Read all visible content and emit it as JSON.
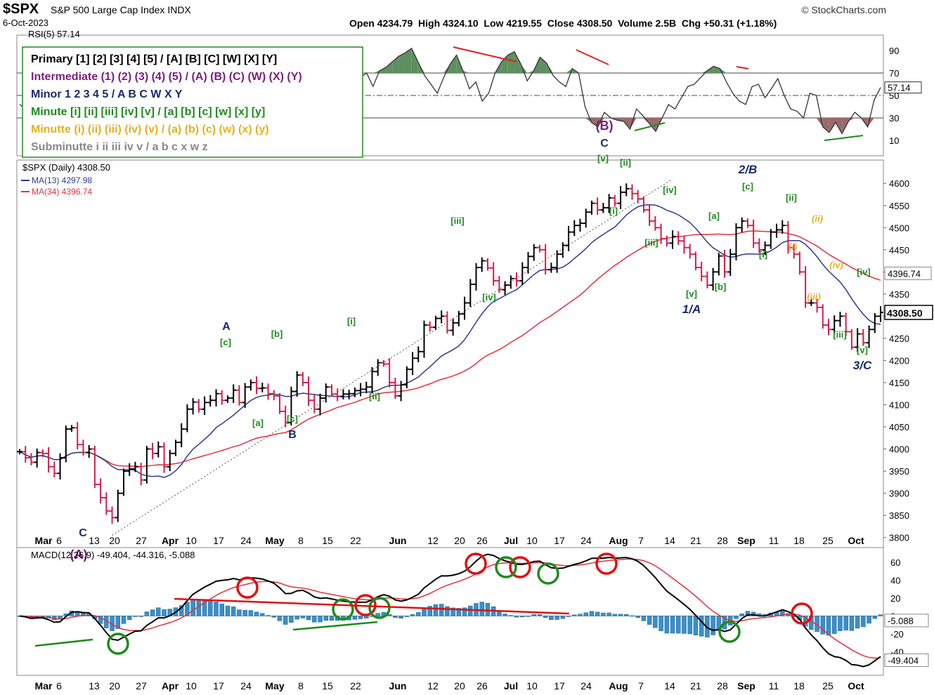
{
  "header": {
    "symbol": "$SPX",
    "name": "S&P 500 Large Cap Index",
    "exchange": "INDX",
    "date": "6-Oct-2023",
    "brand": "© StockCharts.com",
    "ohlc_text": "Open 4234.79  High 4324.10  Low 4219.55  Close 4308.50  Volume 2.5B  Chg +50.31 (+1.18%)"
  },
  "legend_box": [
    {
      "text": "Primary [1] [2] [3] [4] [5] / [A] [B] [C] [W] [X] [Y]",
      "color": "#000000"
    },
    {
      "text": "Intermediate (1) (2) (3) (4) (5) / (A) (B) (C) (W) (X) (Y)",
      "color": "#7a1f7a"
    },
    {
      "text": "Minor 1 2 3 4 5 / A B C W X Y",
      "color": "#1a2a6c"
    },
    {
      "text": "Minute [i] [ii] [iii] [iv] [v] / [a] [b] [c] [w] [x] [y]",
      "color": "#1f8a1f"
    },
    {
      "text": "Minutte (i) (ii) (iii) (iv) (v) / (a) (b) (c) (w) (x) (y)",
      "color": "#e8b020"
    },
    {
      "text": "Subminutte i ii iii iv v / a b c x w z",
      "color": "#888888"
    }
  ],
  "colors": {
    "up": "#000000",
    "down": "#d0204a",
    "ma13": "#2e3a8c",
    "ma34": "#e03040",
    "hist": "#3a8fc8",
    "minute": "#1f8a1f",
    "minutte": "#e8b020",
    "minor": "#1a2a6c",
    "intermediate": "#7a1f7a"
  },
  "chart_data": [
    {
      "type": "line",
      "title": "RSI(5) 57.14",
      "ylim": [
        0,
        100
      ],
      "y_ticks": [
        90,
        70,
        50,
        30,
        10
      ],
      "reference_lines": [
        70,
        50,
        30
      ],
      "last_value": "57.14",
      "series": [
        {
          "name": "RSI(5)",
          "values": [
            42,
            38,
            55,
            60,
            48,
            52,
            40,
            58,
            35,
            50,
            45,
            62,
            70,
            55,
            60,
            48,
            52,
            65,
            68,
            58,
            72,
            66,
            55,
            52,
            62,
            48,
            60,
            66,
            58,
            50,
            62,
            72,
            70,
            60,
            64,
            58,
            50,
            62,
            72,
            58,
            55,
            65,
            72,
            68,
            52,
            60,
            46,
            54,
            63,
            50,
            62,
            55,
            60,
            66,
            70,
            58,
            72,
            75,
            80,
            85,
            88,
            92,
            80,
            68,
            60,
            52,
            66,
            78,
            86,
            72,
            56,
            62,
            45,
            52,
            70,
            80,
            86,
            89,
            78,
            63,
            72,
            84,
            79,
            68,
            62,
            58,
            74,
            70,
            40,
            26,
            22,
            35,
            30,
            28,
            27,
            20,
            38,
            32,
            25,
            18,
            30,
            42,
            38,
            48,
            58,
            60,
            66,
            72,
            76,
            74,
            62,
            52,
            45,
            42,
            58,
            60,
            48,
            56,
            65,
            50,
            38,
            36,
            30,
            52,
            50,
            22,
            17,
            26,
            16,
            27,
            35,
            30,
            22,
            46,
            57.14
          ]
        }
      ]
    },
    {
      "type": "candlestick",
      "title": "$SPX (Daily) 4308.50",
      "y_ticks": [
        4600,
        4550,
        4500,
        4450,
        4400,
        4350,
        4300,
        4250,
        4200,
        4150,
        4100,
        4050,
        4000,
        3950,
        3900,
        3850,
        3800
      ],
      "ylim": [
        3790,
        4640
      ],
      "x_tick_labels": [
        "Mar",
        "6",
        "13",
        "20",
        "27",
        "Apr",
        "10",
        "17",
        "24",
        "May",
        "8",
        "15",
        "22",
        "Jun",
        "12",
        "20",
        "26",
        "Jul",
        "10",
        "17",
        "24",
        "Aug",
        "7",
        "14",
        "21",
        "28",
        "Sep",
        "11",
        "18",
        "25",
        "Oct"
      ],
      "ma13_label": "MA(13) 4297.98",
      "ma34_label": "MA(34) 4396.74",
      "last_close_label": "4308.50",
      "ma34_last_label": "4396.74",
      "closes": [
        3994,
        3980,
        3970,
        3992,
        3990,
        3960,
        3945,
        3980,
        4045,
        4048,
        4010,
        3992,
        4000,
        3920,
        3890,
        3860,
        3845,
        3900,
        3950,
        3955,
        3960,
        3930,
        4000,
        3990,
        4005,
        3960,
        3990,
        4015,
        4045,
        4090,
        4106,
        4090,
        4105,
        4110,
        4125,
        4110,
        4115,
        4133,
        4105,
        4140,
        4150,
        4137,
        4138,
        4125,
        4120,
        4085,
        4060,
        4130,
        4167,
        4150,
        4110,
        4090,
        4115,
        4140,
        4124,
        4119,
        4124,
        4125,
        4132,
        4135,
        4140,
        4175,
        4195,
        4192,
        4150,
        4120,
        4145,
        4180,
        4205,
        4220,
        4280,
        4275,
        4295,
        4300,
        4268,
        4285,
        4305,
        4330,
        4372,
        4410,
        4425,
        4409,
        4380,
        4360,
        4370,
        4385,
        4380,
        4410,
        4435,
        4455,
        4450,
        4405,
        4410,
        4440,
        4460,
        4490,
        4505,
        4510,
        4535,
        4555,
        4540,
        4545,
        4567,
        4555,
        4580,
        4588,
        4577,
        4565,
        4540,
        4515,
        4500,
        4475,
        4465,
        4480,
        4470,
        4455,
        4440,
        4410,
        4390,
        4370,
        4400,
        4436,
        4400,
        4440,
        4500,
        4515,
        4505,
        4465,
        4450,
        4460,
        4490,
        4495,
        4505,
        4455,
        4440,
        4400,
        4330,
        4330,
        4320,
        4280,
        4270,
        4290,
        4300,
        4265,
        4230,
        4260,
        4240,
        4270,
        4300,
        4308.5
      ]
    },
    {
      "type": "line",
      "title": "MACD(12,26,9) -49.404, -44.316, -5.088",
      "ylim": [
        -60,
        70
      ],
      "y_ticks": [
        60,
        40,
        20,
        0,
        -20,
        -40
      ],
      "labels": {
        "macd": "-49.404",
        "signal": "-44.316",
        "hist": "-5.088"
      }
    }
  ],
  "annotations": {
    "main_labels": [
      {
        "text": "C",
        "color": "#1a2a6c"
      },
      {
        "text": "(A)",
        "color": "#7a1f7a"
      },
      {
        "text": "A",
        "color": "#1a2a6c"
      },
      {
        "text": "[c]",
        "color": "#1f8a1f"
      },
      {
        "text": "[b]",
        "color": "#1f8a1f"
      },
      {
        "text": "[a]",
        "color": "#1f8a1f"
      },
      {
        "text": "[c]",
        "color": "#1f8a1f"
      },
      {
        "text": "B",
        "color": "#1a2a6c"
      },
      {
        "text": "[i]",
        "color": "#1f8a1f"
      },
      {
        "text": "[ii]",
        "color": "#1f8a1f"
      },
      {
        "text": "[iii]",
        "color": "#1f8a1f"
      },
      {
        "text": "[iv]",
        "color": "#1f8a1f"
      },
      {
        "text": "(B)",
        "color": "#7a1f7a"
      },
      {
        "text": "C",
        "color": "#1a2a6c"
      },
      {
        "text": "[v]",
        "color": "#1f8a1f"
      },
      {
        "text": "[ii]",
        "color": "#1f8a1f"
      },
      {
        "text": "[i]",
        "color": "#1f8a1f"
      },
      {
        "text": "[iv]",
        "color": "#1f8a1f"
      },
      {
        "text": "[iii]",
        "color": "#1f8a1f"
      },
      {
        "text": "[v]",
        "color": "#1f8a1f"
      },
      {
        "text": "1/A",
        "color": "#1a2a6c"
      },
      {
        "text": "[a]",
        "color": "#1f8a1f"
      },
      {
        "text": "[b]",
        "color": "#1f8a1f"
      },
      {
        "text": "2/B",
        "color": "#1a2a6c"
      },
      {
        "text": "[c]",
        "color": "#1f8a1f"
      },
      {
        "text": "[i]",
        "color": "#1f8a1f"
      },
      {
        "text": "[ii]",
        "color": "#1f8a1f"
      },
      {
        "text": "(ii)",
        "color": "#e8b020"
      },
      {
        "text": "(i)",
        "color": "#e8b020"
      },
      {
        "text": "(iv)",
        "color": "#e8b020"
      },
      {
        "text": "(iii)",
        "color": "#e8b020"
      },
      {
        "text": "[iv]",
        "color": "#1f8a1f"
      },
      {
        "text": "[iii]",
        "color": "#1f8a1f"
      },
      {
        "text": "[v]",
        "color": "#1f8a1f"
      },
      {
        "text": "3/C",
        "color": "#1a2a6c"
      }
    ]
  }
}
